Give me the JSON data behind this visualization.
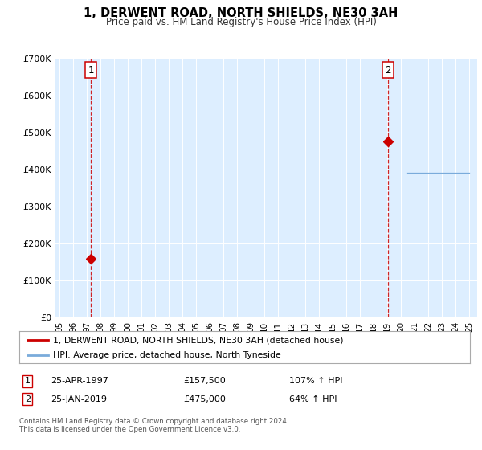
{
  "title": "1, DERWENT ROAD, NORTH SHIELDS, NE30 3AH",
  "subtitle": "Price paid vs. HM Land Registry's House Price Index (HPI)",
  "legend_label_red": "1, DERWENT ROAD, NORTH SHIELDS, NE30 3AH (detached house)",
  "legend_label_blue": "HPI: Average price, detached house, North Tyneside",
  "transaction1_date": "25-APR-1997",
  "transaction1_price": "£157,500",
  "transaction1_hpi": "107% ↑ HPI",
  "transaction1_year": 1997.31,
  "transaction1_value": 157500,
  "transaction2_date": "25-JAN-2019",
  "transaction2_price": "£475,000",
  "transaction2_hpi": "64% ↑ HPI",
  "transaction2_year": 2019.07,
  "transaction2_value": 475000,
  "red_color": "#cc0000",
  "blue_color": "#7aabdb",
  "plot_bg_color": "#ddeeff",
  "footer_text": "Contains HM Land Registry data © Crown copyright and database right 2024.\nThis data is licensed under the Open Government Licence v3.0.",
  "ylim": [
    0,
    700000
  ],
  "yticks": [
    0,
    100000,
    200000,
    300000,
    400000,
    500000,
    600000,
    700000
  ],
  "ytick_labels": [
    "£0",
    "£100K",
    "£200K",
    "£300K",
    "£400K",
    "£500K",
    "£600K",
    "£700K"
  ],
  "xlim_start": 1994.7,
  "xlim_end": 2025.6
}
